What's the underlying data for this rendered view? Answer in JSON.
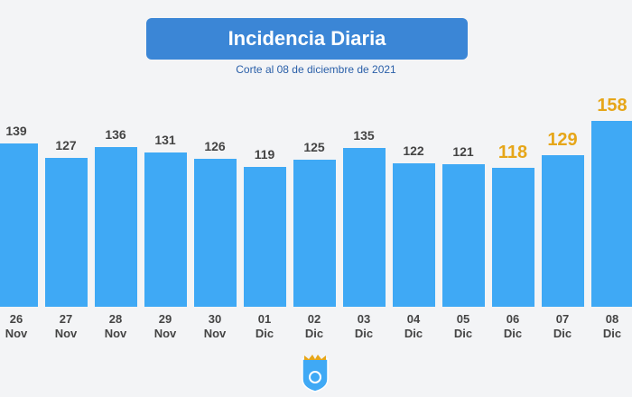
{
  "chart_data": {
    "type": "bar",
    "title": "Incidencia Diaria",
    "subtitle": "Corte al 08 de diciembre de 2021",
    "categories": [
      "26\nNov",
      "27\nNov",
      "28\nNov",
      "29\nNov",
      "30\nNov",
      "01\nDic",
      "02\nDic",
      "03\nDic",
      "04\nDic",
      "05\nDic",
      "06\nDic",
      "07\nDic",
      "08\nDic"
    ],
    "values": [
      139,
      127,
      136,
      131,
      126,
      119,
      125,
      135,
      122,
      121,
      118,
      129,
      158
    ],
    "color": "#3fa9f5",
    "highlighted": [
      10,
      11,
      12
    ],
    "highlight_color": "#e6a619",
    "ylim": [
      0,
      165
    ]
  }
}
